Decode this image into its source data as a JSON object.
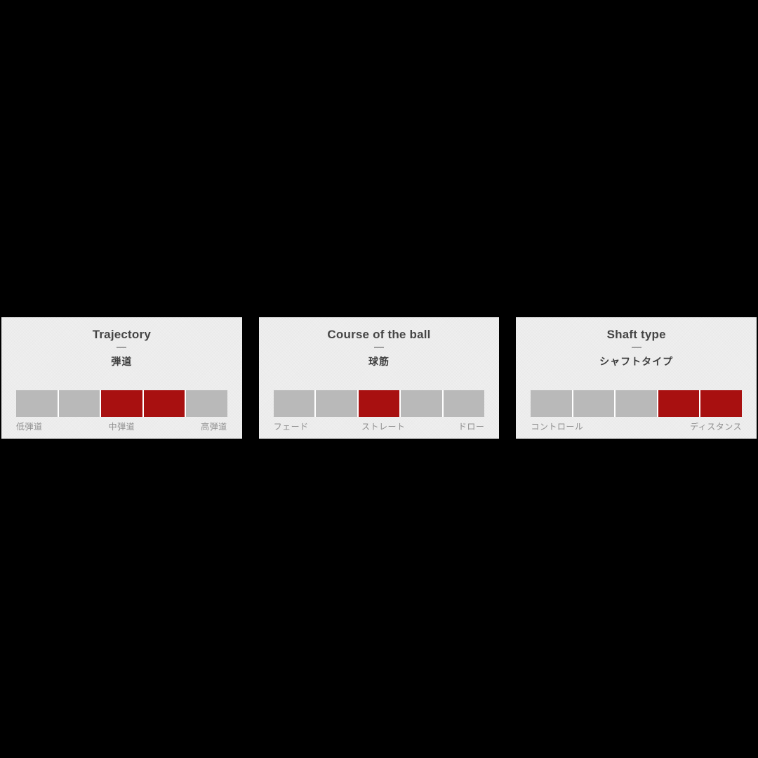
{
  "page": {
    "background_color": "#000000"
  },
  "colors": {
    "panel_background": "#efefef",
    "panel_gap": "#ffffff",
    "segment_inactive": "#b9b9b9",
    "segment_active": "#a81010",
    "title_text": "#454545",
    "subtitle_text": "#3d3d3d",
    "label_text": "#8f8f8f",
    "divider": "#9e9e9e"
  },
  "panels": [
    {
      "title": "Trajectory",
      "subtitle_ja": "弾道",
      "segments": [
        0,
        0,
        1,
        1,
        0
      ],
      "labels": {
        "left": "低弾道",
        "center": "中弾道",
        "right": "高弾道"
      }
    },
    {
      "title": "Course of the ball",
      "subtitle_ja": "球筋",
      "segments": [
        0,
        0,
        1,
        0,
        0
      ],
      "labels": {
        "left": "フェード",
        "center": "ストレート",
        "right": "ドロー"
      }
    },
    {
      "title": "Shaft type",
      "subtitle_ja": "シャフトタイプ",
      "segments": [
        0,
        0,
        0,
        1,
        1
      ],
      "labels": {
        "left": "コントロール",
        "center": "",
        "right": "ディスタンス"
      }
    }
  ],
  "chart_data": [
    {
      "type": "bar",
      "title": "Trajectory",
      "subtitle": "弾道",
      "categories": [
        "1",
        "2",
        "3",
        "4",
        "5"
      ],
      "values": [
        0,
        0,
        1,
        1,
        0
      ],
      "ylim": [
        0,
        1
      ],
      "xlabel": "",
      "ylabel": "",
      "legend": "off",
      "tick_labels": [
        "低弾道",
        "中弾道",
        "高弾道"
      ],
      "note": "5-segment rating scale; segments 3 and 4 highlighted (mid trajectory)"
    },
    {
      "type": "bar",
      "title": "Course of the ball",
      "subtitle": "球筋",
      "categories": [
        "1",
        "2",
        "3",
        "4",
        "5"
      ],
      "values": [
        0,
        0,
        1,
        0,
        0
      ],
      "ylim": [
        0,
        1
      ],
      "xlabel": "",
      "ylabel": "",
      "legend": "off",
      "tick_labels": [
        "フェード",
        "ストレート",
        "ドロー"
      ],
      "note": "5-segment rating scale; segment 3 highlighted (straight)"
    },
    {
      "type": "bar",
      "title": "Shaft type",
      "subtitle": "シャフトタイプ",
      "categories": [
        "1",
        "2",
        "3",
        "4",
        "5"
      ],
      "values": [
        0,
        0,
        0,
        1,
        1
      ],
      "ylim": [
        0,
        1
      ],
      "xlabel": "",
      "ylabel": "",
      "legend": "off",
      "tick_labels": [
        "コントロール",
        "ディスタンス"
      ],
      "note": "5-segment rating scale; segments 4 and 5 highlighted (distance)"
    }
  ]
}
